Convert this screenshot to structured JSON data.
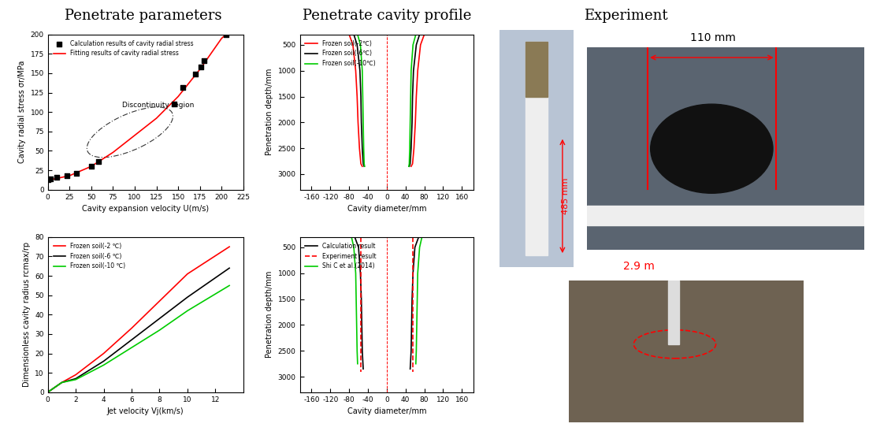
{
  "headings": [
    "Penetrate parameters",
    "Penetrate cavity profile",
    "Experiment"
  ],
  "experiment": {
    "labels": [
      "110 mm",
      "485 mm",
      "2.9 m"
    ]
  },
  "chart_data": [
    {
      "type": "scatter_line",
      "xlabel": "Cavity expansion velocity U(m/s)",
      "ylabel": "Cavity radial stress σr/MPa",
      "xlim": [
        0,
        225
      ],
      "xticks": [
        0,
        25,
        50,
        75,
        100,
        125,
        150,
        175,
        200,
        225
      ],
      "ylim": [
        0,
        200
      ],
      "yticks": [
        0,
        25,
        50,
        75,
        100,
        125,
        150,
        175,
        200
      ],
      "legend": "upper left",
      "annotation": "Discontinuity region",
      "series": [
        {
          "name": "Calculation results of cavity radial stress",
          "type": "scatter",
          "color": "#000000",
          "marker": "square",
          "x": [
            0,
            3,
            10,
            22,
            33,
            50,
            58,
            145,
            155,
            170,
            176,
            180,
            205
          ],
          "values": [
            13,
            14,
            16,
            18,
            21,
            30,
            36,
            110,
            132,
            149,
            158,
            166,
            200
          ]
        },
        {
          "name": "Fitting results of cavity radial stress",
          "type": "line",
          "color": "#ff0000",
          "line_style": "solid",
          "x": [
            0,
            25,
            50,
            75,
            100,
            125,
            150,
            175,
            200,
            205
          ],
          "values": [
            12,
            18,
            30,
            48,
            70,
            92,
            120,
            155,
            195,
            200
          ]
        }
      ]
    },
    {
      "type": "line",
      "xlabel": "Jet velocity Vj(km/s)",
      "ylabel": "Dimensionless cavity radius rcmax/rp",
      "xlim": [
        0,
        14
      ],
      "xticks": [
        0,
        2,
        4,
        6,
        8,
        10,
        12
      ],
      "ylim": [
        0,
        80
      ],
      "yticks": [
        0,
        10,
        20,
        30,
        40,
        50,
        60,
        70,
        80
      ],
      "legend": "upper left",
      "series": [
        {
          "name": "Frozen soil(-2 ℃)",
          "color": "#ff0000",
          "line_style": "solid",
          "x": [
            0,
            1,
            2,
            4,
            6,
            8,
            10,
            13
          ],
          "values": [
            0,
            5,
            9,
            20,
            33,
            47,
            61,
            75
          ]
        },
        {
          "name": "Frozen soil(-6 ℃)",
          "color": "#000000",
          "line_style": "solid",
          "x": [
            0,
            1,
            2,
            4,
            6,
            8,
            10,
            13
          ],
          "values": [
            0,
            5,
            7,
            16,
            27,
            38,
            49,
            64
          ]
        },
        {
          "name": "Frozen soil(-10 ℃)",
          "color": "#00cc00",
          "line_style": "solid",
          "x": [
            0,
            1,
            2,
            4,
            6,
            8,
            10,
            13
          ],
          "values": [
            0,
            5,
            6.5,
            14,
            23,
            32,
            42,
            55
          ]
        }
      ]
    },
    {
      "type": "profile",
      "xlabel": "Cavity diameter/mm",
      "ylabel": "Penetration depth/mm",
      "xlim": [
        -185,
        185
      ],
      "xticks": [
        -160,
        -120,
        -80,
        -40,
        0,
        40,
        80,
        120,
        160
      ],
      "ylim": [
        3300,
        300
      ],
      "yticks": [
        500,
        1000,
        1500,
        2000,
        2500,
        3000
      ],
      "legend": "upper left",
      "series": [
        {
          "name": "Frozen soil(-2℃)",
          "color": "#ff0000",
          "line_style": "solid",
          "y": [
            300,
            500,
            1000,
            1500,
            2000,
            2500,
            2800,
            2850
          ],
          "x_right": [
            80,
            72,
            66,
            63,
            61,
            58,
            55,
            52
          ],
          "x_left": [
            -80,
            -72,
            -66,
            -63,
            -61,
            -58,
            -55,
            -52
          ]
        },
        {
          "name": "Frozen soil(-6℃)",
          "color": "#000000",
          "line_style": "solid",
          "y": [
            300,
            500,
            1000,
            1500,
            2000,
            2500,
            2800,
            2850
          ],
          "x_right": [
            70,
            63,
            57,
            55,
            54,
            52,
            50,
            48
          ],
          "x_left": [
            -70,
            -63,
            -57,
            -55,
            -54,
            -52,
            -50,
            -48
          ]
        },
        {
          "name": "Frozen soil(-10℃)",
          "color": "#00cc00",
          "line_style": "solid",
          "y": [
            300,
            500,
            1000,
            1500,
            2000,
            2500,
            2800,
            2850
          ],
          "x_right": [
            62,
            56,
            52,
            51,
            50,
            49,
            48,
            47
          ],
          "x_left": [
            -62,
            -56,
            -52,
            -51,
            -50,
            -49,
            -48,
            -47
          ]
        }
      ]
    },
    {
      "type": "profile",
      "xlabel": "Cavity diameter/mm",
      "ylabel": "Penetration depth/mm",
      "xlim": [
        -185,
        185
      ],
      "xticks": [
        -160,
        -120,
        -80,
        -40,
        0,
        40,
        80,
        120,
        160
      ],
      "ylim": [
        3300,
        300
      ],
      "yticks": [
        500,
        1000,
        1500,
        2000,
        2500,
        3000
      ],
      "legend": "upper left",
      "series": [
        {
          "name": "Calculation result",
          "color": "#000000",
          "line_style": "solid",
          "y": [
            300,
            500,
            1000,
            1500,
            2000,
            2500,
            2850
          ],
          "x_right": [
            68,
            60,
            56,
            54,
            53,
            52,
            50
          ],
          "x_left": [
            -68,
            -60,
            -56,
            -54,
            -53,
            -52,
            -50
          ]
        },
        {
          "name": "Experiment result",
          "color": "#ff0000",
          "line_style": "dashed",
          "y": [
            300,
            2900
          ],
          "x_right": [
            55,
            55
          ],
          "x_left": [
            -55,
            -55
          ]
        },
        {
          "name": "Shi C et al.(2014)",
          "color": "#00cc00",
          "line_style": "solid",
          "y": [
            300,
            500,
            1000,
            1500,
            2000,
            2500,
            2750
          ],
          "x_right": [
            75,
            70,
            66,
            65,
            64,
            63,
            62
          ],
          "x_left": [
            -75,
            -70,
            -66,
            -65,
            -64,
            -63,
            -62
          ]
        }
      ]
    }
  ]
}
